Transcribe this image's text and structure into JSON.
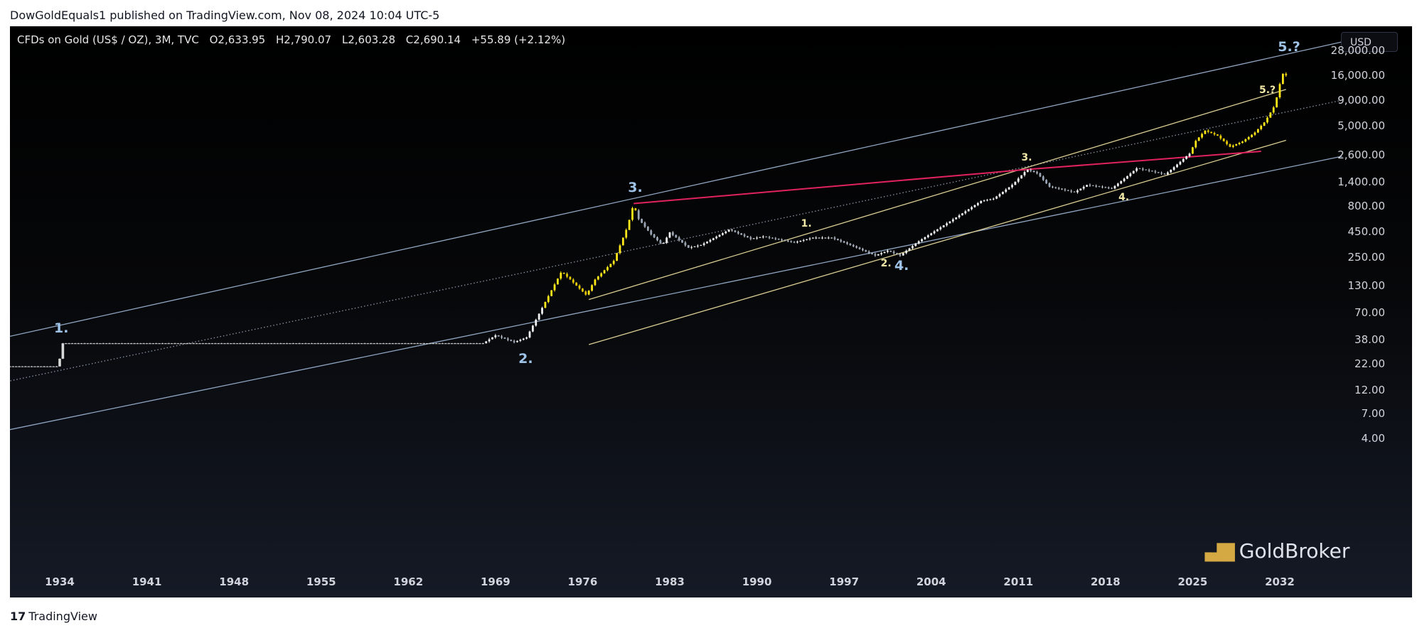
{
  "publisher": "DowGoldEquals1 published on TradingView.com, Nov 08, 2024 10:04 UTC-5",
  "legend": {
    "symbol": "CFDs on Gold (US$ / OZ), 3M, TVC",
    "open": "O2,633.95",
    "high": "H2,790.07",
    "low": "L2,603.28",
    "close": "C2,690.14",
    "change": "+55.89 (+2.12%)"
  },
  "currency_button": "USD",
  "chart_data": {
    "type": "candlestick",
    "scale": "log",
    "y_ticks": [
      "28,000.00",
      "16,000.00",
      "9,000.00",
      "5,000.00",
      "2,600.00",
      "1,400.00",
      "800.00",
      "450.00",
      "250.00",
      "130.00",
      "70.00",
      "38.00",
      "22.00",
      "12.00",
      "7.00",
      "4.00"
    ],
    "x_ticks": [
      "1934",
      "1941",
      "1948",
      "1955",
      "1962",
      "1969",
      "1976",
      "1983",
      "1990",
      "1997",
      "2004",
      "2011",
      "2018",
      "2025",
      "2032"
    ],
    "price_path": [
      [
        1928,
        20.67
      ],
      [
        1933.9,
        20.67
      ],
      [
        1934.2,
        35
      ],
      [
        1968,
        35
      ],
      [
        1969,
        42
      ],
      [
        1970.5,
        36
      ],
      [
        1971.5,
        40
      ],
      [
        1973,
        90
      ],
      [
        1974.3,
        180
      ],
      [
        1975,
        150
      ],
      [
        1976.3,
        105
      ],
      [
        1977,
        150
      ],
      [
        1978.5,
        230
      ],
      [
        1979.6,
        500
      ],
      [
        1980.1,
        850
      ],
      [
        1980.4,
        620
      ],
      [
        1981.5,
        420
      ],
      [
        1982.4,
        330
      ],
      [
        1983,
        440
      ],
      [
        1984.5,
        310
      ],
      [
        1985.5,
        330
      ],
      [
        1987.8,
        470
      ],
      [
        1989.5,
        380
      ],
      [
        1990.5,
        400
      ],
      [
        1993,
        350
      ],
      [
        1994.5,
        390
      ],
      [
        1996,
        390
      ],
      [
        1997.5,
        330
      ],
      [
        1999.5,
        260
      ],
      [
        2000.5,
        290
      ],
      [
        2001.5,
        260
      ],
      [
        2003,
        360
      ],
      [
        2006,
        620
      ],
      [
        2008,
        900
      ],
      [
        2009,
        950
      ],
      [
        2010.5,
        1300
      ],
      [
        2011.7,
        1850
      ],
      [
        2012.5,
        1700
      ],
      [
        2013.5,
        1250
      ],
      [
        2015.5,
        1100
      ],
      [
        2016.5,
        1300
      ],
      [
        2018.5,
        1200
      ],
      [
        2019.5,
        1500
      ],
      [
        2020.5,
        1900
      ],
      [
        2021.5,
        1800
      ],
      [
        2022.8,
        1650
      ],
      [
        2023.5,
        1950
      ],
      [
        2024.8,
        2690
      ],
      [
        2025.2,
        3500
      ],
      [
        2026,
        4500
      ],
      [
        2027,
        4000
      ],
      [
        2028,
        3100
      ],
      [
        2029,
        3500
      ],
      [
        2030,
        4300
      ],
      [
        2030.8,
        5500
      ],
      [
        2031.6,
        8000
      ],
      [
        2032,
        13000
      ],
      [
        2032.4,
        19000
      ],
      [
        2032.7,
        11000
      ]
    ],
    "trendlines": [
      {
        "style": "channel-outer",
        "color": "#8fa5c2",
        "points": [
          [
            1925,
            30
          ],
          [
            2037,
            34000
          ]
        ]
      },
      {
        "style": "channel-outer",
        "color": "#8fa5c2",
        "points": [
          [
            1927,
            4.1
          ],
          [
            2037,
            2500
          ]
        ]
      },
      {
        "style": "midline-dotted",
        "color": "#8a93a6",
        "points": [
          [
            1925,
            11
          ],
          [
            2037,
            9000
          ]
        ]
      },
      {
        "style": "inner-channel",
        "color": "#d9cc92",
        "points": [
          [
            1976.5,
            95
          ],
          [
            2032.5,
            11500
          ]
        ]
      },
      {
        "style": "inner-channel",
        "color": "#d9cc92",
        "points": [
          [
            1976.5,
            34
          ],
          [
            2032.5,
            3600
          ]
        ]
      },
      {
        "style": "resistance",
        "color": "#e0225f",
        "points": [
          [
            1980.1,
            850
          ],
          [
            2011.7,
            1850
          ],
          [
            2030.5,
            2800
          ]
        ]
      }
    ],
    "wave_labels_primary": [
      {
        "text": "1.",
        "x": 1934,
        "y": 50
      },
      {
        "text": "2.",
        "x": 1971.3,
        "y": 25
      },
      {
        "text": "3.",
        "x": 1980.1,
        "y": 1250
      },
      {
        "text": "4.",
        "x": 2001.5,
        "y": 210
      },
      {
        "text": "5.?",
        "x": 2032.3,
        "y": 31000
      }
    ],
    "wave_labels_secondary": [
      {
        "text": "1.",
        "x": 1994,
        "y": 520
      },
      {
        "text": "2.",
        "x": 2000.4,
        "y": 210
      },
      {
        "text": "3.",
        "x": 2011.7,
        "y": 2350
      },
      {
        "text": "4.",
        "x": 2019.5,
        "y": 940
      },
      {
        "text": "5.?",
        "x": 2030.8,
        "y": 11000
      }
    ]
  },
  "watermark": "GoldBroker",
  "footer": "TradingView"
}
